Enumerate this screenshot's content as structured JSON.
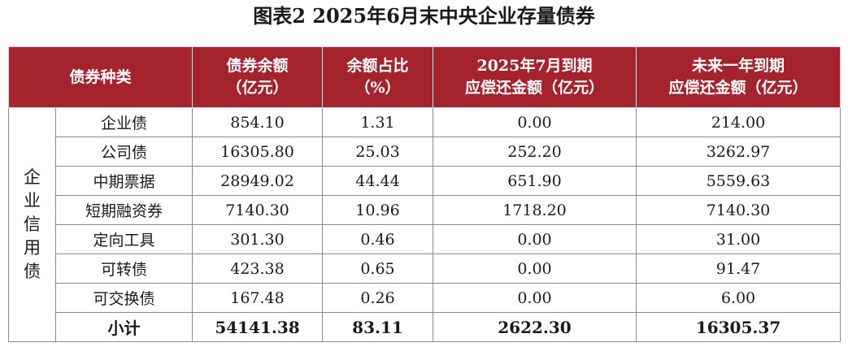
{
  "title": "图表2  2025年6月末中央企业存量债券",
  "header": {
    "col1": "债券种类",
    "col2_line1": "债券余额",
    "col2_line2": "（亿元）",
    "col3_line1": "余额占比",
    "col3_line2": "（%）",
    "col4_line1": "2025年7月到期",
    "col4_line2": "应偿还金额（亿元）",
    "col5_line1": "未来一年到期",
    "col5_line2": "应偿还金额（亿元）"
  },
  "category_chars": [
    "企",
    "业",
    "信",
    "用",
    "债"
  ],
  "rows": [
    {
      "type": "企业债",
      "balance": "854.10",
      "share": "1.31",
      "jul": "0.00",
      "year": "214.00"
    },
    {
      "type": "公司债",
      "balance": "16305.80",
      "share": "25.03",
      "jul": "252.20",
      "year": "3262.97"
    },
    {
      "type": "中期票据",
      "balance": "28949.02",
      "share": "44.44",
      "jul": "651.90",
      "year": "5559.63"
    },
    {
      "type": "短期融资券",
      "balance": "7140.30",
      "share": "10.96",
      "jul": "1718.20",
      "year": "7140.30"
    },
    {
      "type": "定向工具",
      "balance": "301.30",
      "share": "0.46",
      "jul": "0.00",
      "year": "31.00"
    },
    {
      "type": "可转债",
      "balance": "423.38",
      "share": "0.65",
      "jul": "0.00",
      "year": "91.47"
    },
    {
      "type": "可交换债",
      "balance": "167.48",
      "share": "0.26",
      "jul": "0.00",
      "year": "6.00"
    }
  ],
  "total": {
    "label": "小计",
    "balance": "54141.38",
    "share": "83.11",
    "jul": "2622.30",
    "year": "16305.37"
  }
}
